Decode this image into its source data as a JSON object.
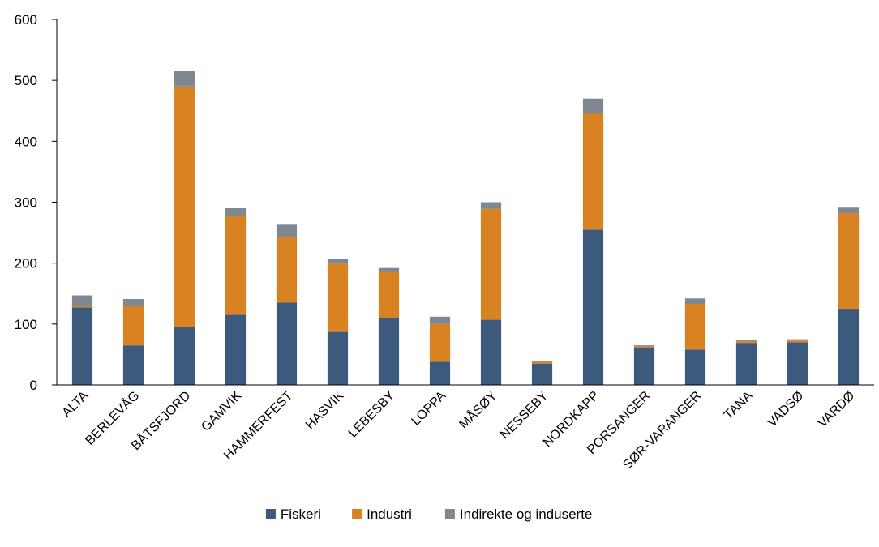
{
  "chart_data": {
    "type": "bar",
    "stacked": true,
    "title": "",
    "xlabel": "",
    "ylabel": "",
    "ylim": [
      0,
      600
    ],
    "yticks": [
      0,
      100,
      200,
      300,
      400,
      500,
      600
    ],
    "grid": false,
    "legend": "bottom",
    "categories": [
      "ALTA",
      "BERLEVÅG",
      "BÅTSFJORD",
      "GAMVIK",
      "HAMMERFEST",
      "HASVIK",
      "LEBESBY",
      "LOPPA",
      "MÅSØY",
      "NESSEBY",
      "NORDKAPP",
      "PORSANGER",
      "SØR-VARANGER",
      "TANA",
      "VADSØ",
      "VARDØ"
    ],
    "series": [
      {
        "name": "Fiskeri",
        "color": "#3C5A7E",
        "values": [
          127,
          65,
          95,
          115,
          135,
          87,
          110,
          38,
          107,
          35,
          255,
          61,
          58,
          69,
          70,
          125
        ]
      },
      {
        "name": "Industri",
        "color": "#D98222",
        "values": [
          2,
          65,
          395,
          163,
          108,
          112,
          75,
          62,
          182,
          3,
          190,
          2,
          75,
          3,
          3,
          157
        ]
      },
      {
        "name": "Indirekte og induserte",
        "color": "#7F8790",
        "values": [
          18,
          11,
          25,
          12,
          20,
          8,
          7,
          12,
          11,
          1,
          25,
          2,
          9,
          2,
          2,
          9
        ]
      }
    ]
  }
}
